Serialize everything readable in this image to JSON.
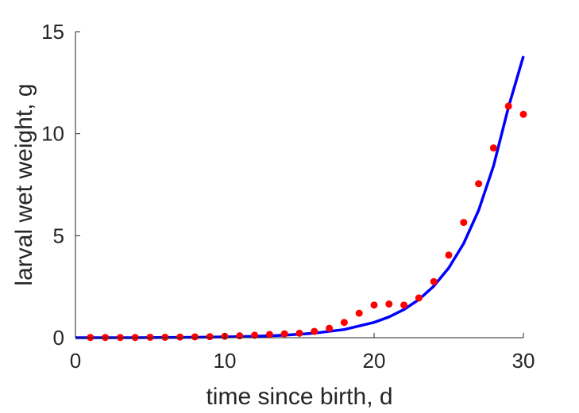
{
  "chart_data": {
    "type": "scatter",
    "title": "",
    "xlabel": "time since birth, d",
    "ylabel": "larval wet weight, g",
    "xlim": [
      0,
      30
    ],
    "ylim": [
      0,
      15
    ],
    "xticks": [
      0,
      10,
      20,
      30
    ],
    "yticks": [
      0,
      5,
      10,
      15
    ],
    "grid": false,
    "legend": "none",
    "series": [
      {
        "kind": "points",
        "color": "#ff0000",
        "x": [
          1,
          2,
          3,
          4,
          5,
          6,
          7,
          8,
          9,
          10,
          11,
          12,
          13,
          14,
          15,
          16,
          17,
          18,
          19,
          20,
          21,
          22,
          23,
          24,
          25,
          26,
          27,
          28,
          29,
          30
        ],
        "y": [
          0.01,
          0.01,
          0.01,
          0.01,
          0.02,
          0.02,
          0.03,
          0.04,
          0.05,
          0.07,
          0.09,
          0.12,
          0.16,
          0.19,
          0.22,
          0.31,
          0.46,
          0.75,
          1.2,
          1.6,
          1.65,
          1.6,
          1.95,
          2.75,
          4.05,
          5.65,
          7.55,
          9.3,
          11.35,
          10.95
        ]
      },
      {
        "kind": "line",
        "color": "#0000ff",
        "x": [
          0,
          2,
          4,
          6,
          8,
          10,
          12,
          14,
          16,
          18,
          20,
          21,
          22,
          23,
          24,
          25,
          26,
          27,
          28,
          29,
          30
        ],
        "y": [
          0.0,
          0.0,
          0.0,
          0.01,
          0.02,
          0.04,
          0.07,
          0.12,
          0.22,
          0.4,
          0.75,
          1.02,
          1.38,
          1.87,
          2.53,
          3.42,
          4.62,
          6.24,
          8.42,
          11.3,
          13.8
        ]
      }
    ]
  }
}
